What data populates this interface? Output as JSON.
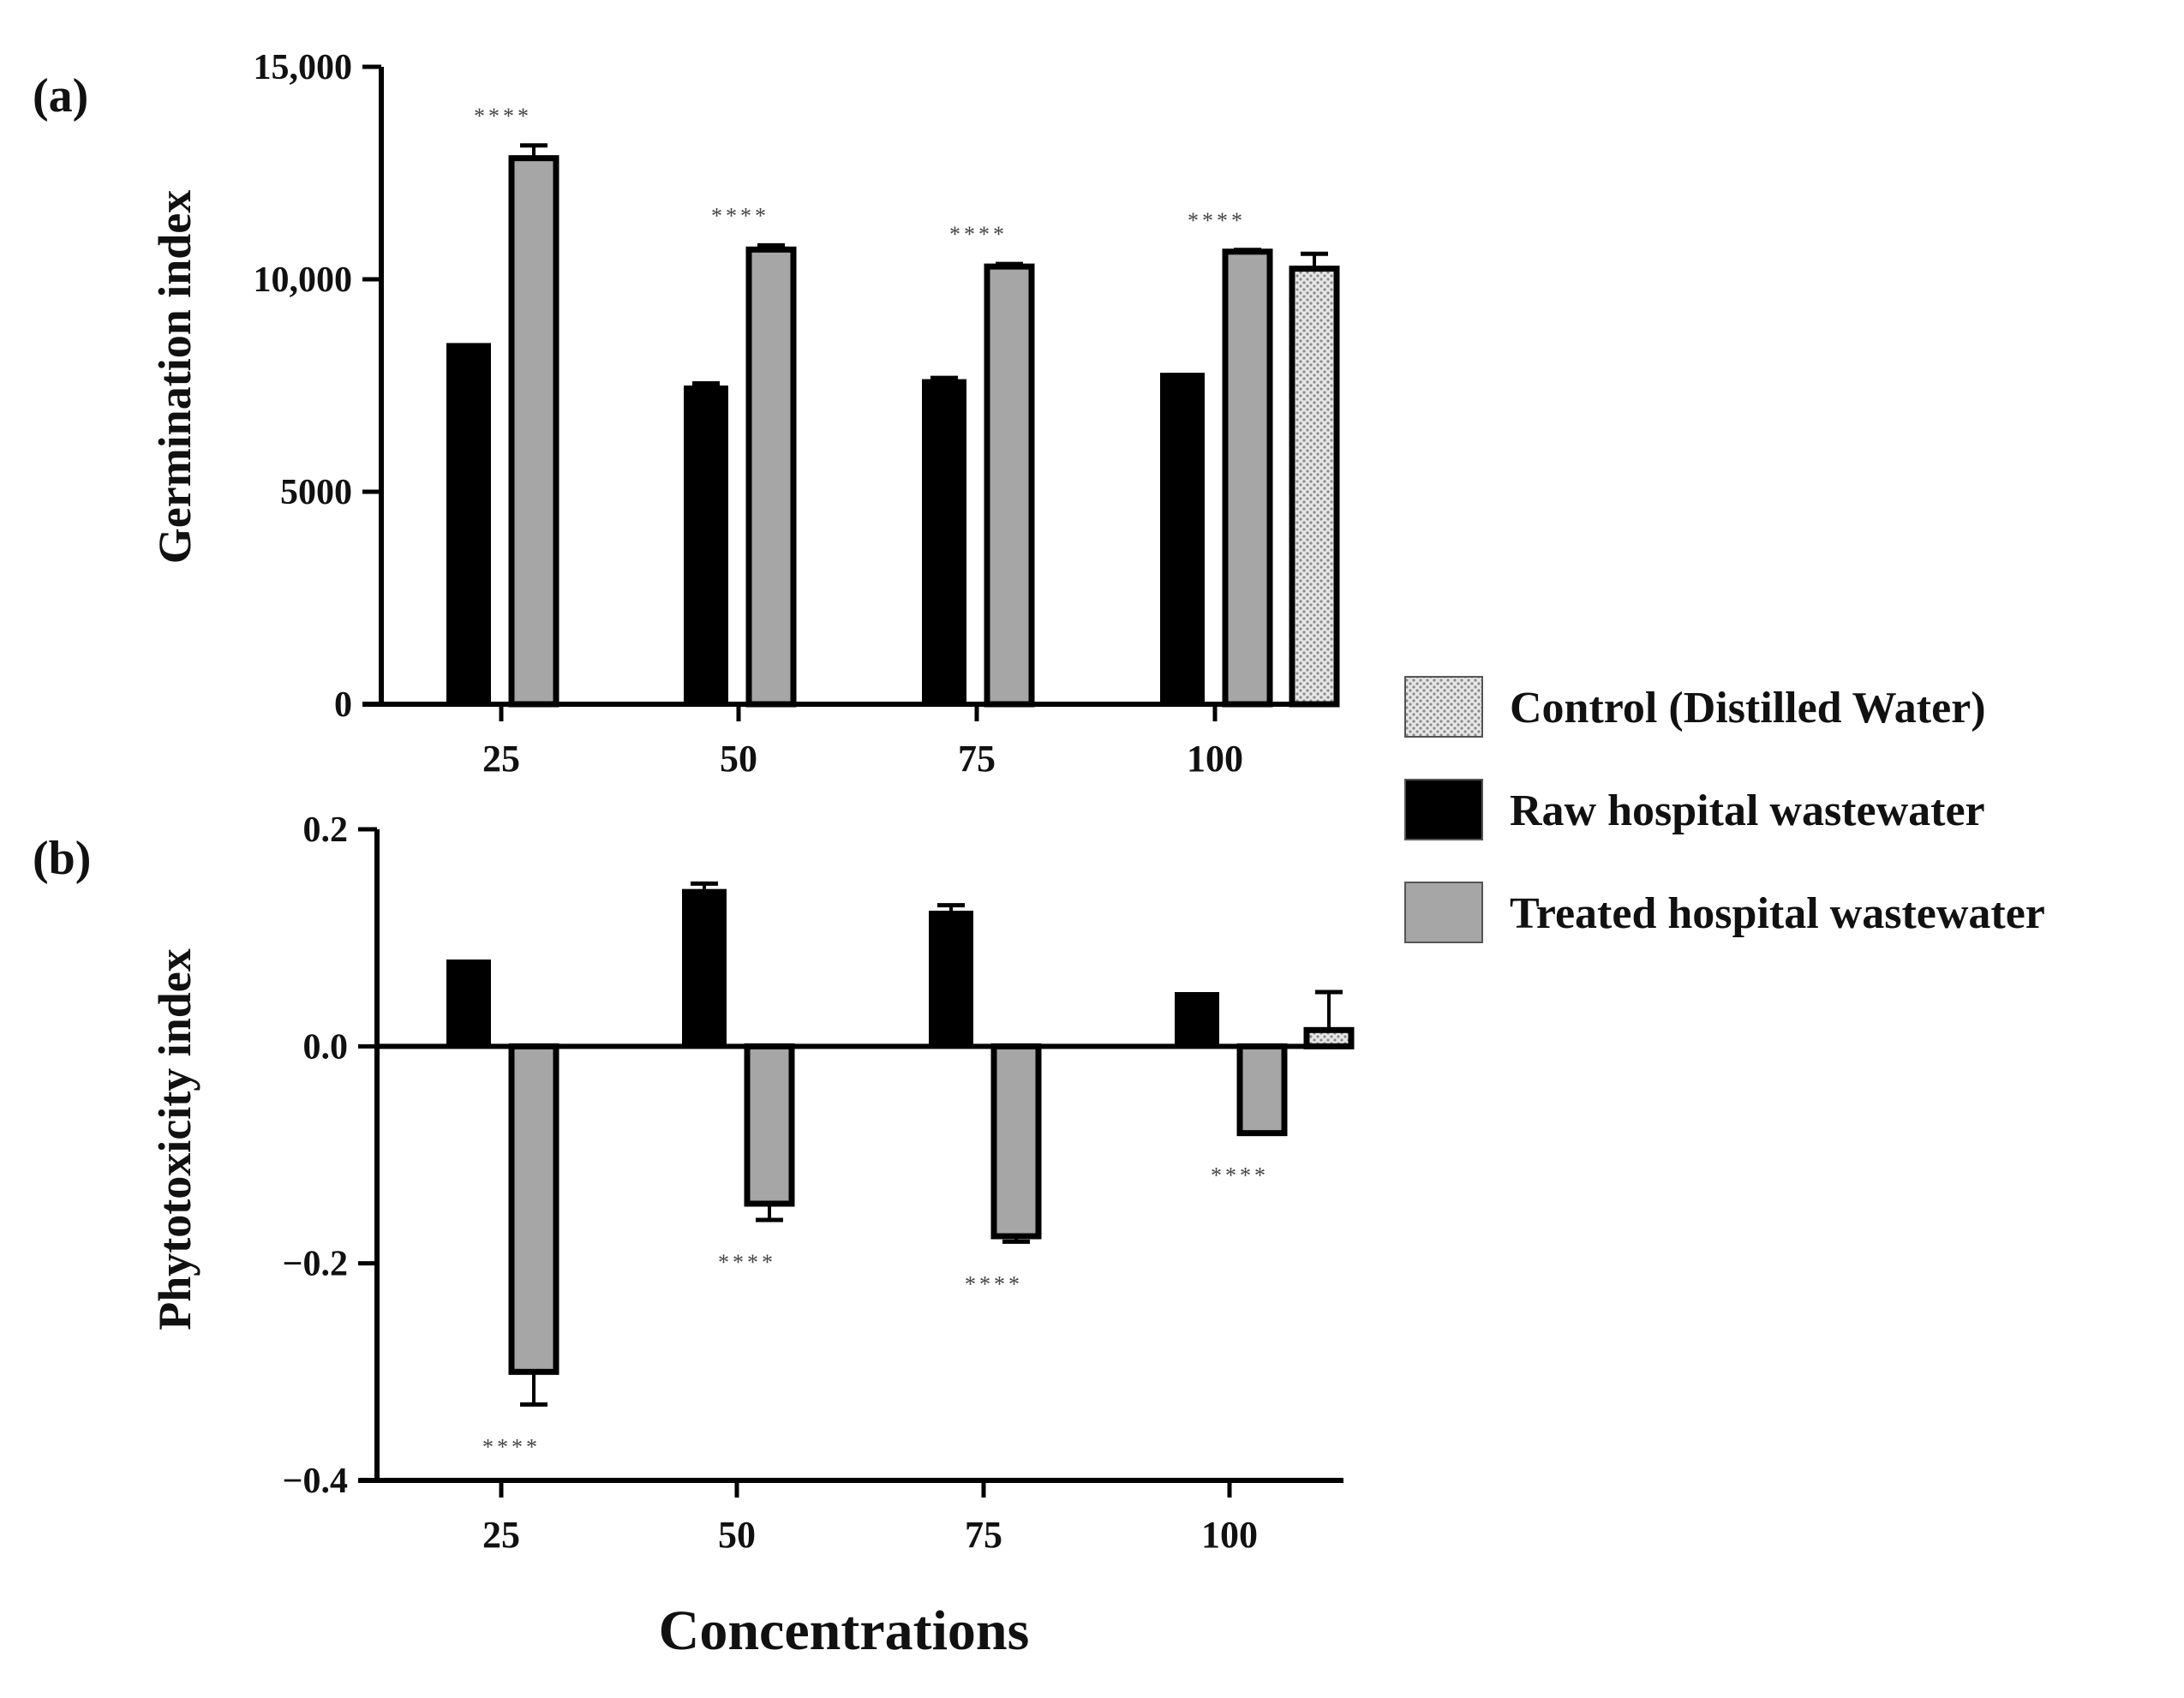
{
  "chart_data": [
    {
      "panel_label": "(a)",
      "type": "bar",
      "categories": [
        "25",
        "50",
        "75",
        "100"
      ],
      "ylabel": "Germination index",
      "ylim": [
        0,
        15000
      ],
      "yticks": [
        0,
        5000,
        10000,
        15000
      ],
      "ytick_labels": [
        "0",
        "5000",
        "10,000",
        "15,000"
      ],
      "series": [
        {
          "name": "Raw hospital wastewater",
          "color": "#000000",
          "values": [
            8500,
            7500,
            7650,
            7800
          ],
          "errors": [
            0,
            50,
            30,
            0
          ]
        },
        {
          "name": "Treated hospital wastewater",
          "color": "#a6a6a6",
          "values": [
            12850,
            10700,
            10300,
            10650
          ],
          "errors": [
            300,
            100,
            60,
            40
          ]
        }
      ],
      "control": {
        "name": "Control (Distilled Water)",
        "category": "100",
        "value": 10250,
        "error": 350,
        "pattern": "dotted-gray"
      },
      "significance": [
        "****",
        "****",
        "****",
        "****"
      ]
    },
    {
      "panel_label": "(b)",
      "type": "bar",
      "categories": [
        "25",
        "50",
        "75",
        "100"
      ],
      "ylabel": "Phytotoxicity index",
      "xlabel": "Concentrations",
      "ylim": [
        -0.4,
        0.2
      ],
      "yticks": [
        -0.4,
        -0.2,
        0.0,
        0.2
      ],
      "ytick_labels": [
        "−0.4",
        "−0.2",
        "0.0",
        "0.2"
      ],
      "series": [
        {
          "name": "Raw hospital wastewater",
          "color": "#000000",
          "values": [
            0.08,
            0.145,
            0.125,
            0.05
          ],
          "errors": [
            0,
            0.005,
            0.005,
            0
          ]
        },
        {
          "name": "Treated hospital wastewater",
          "color": "#a6a6a6",
          "values": [
            -0.3,
            -0.145,
            -0.175,
            -0.08
          ],
          "errors": [
            0.03,
            0.015,
            0.005,
            0
          ]
        },
        {
          "name": "Control (Distilled Water)",
          "color": "#d8d8d8",
          "values": [
            null,
            null,
            null,
            0.015
          ],
          "errors": [
            0,
            0,
            0,
            0.035
          ]
        }
      ],
      "significance": [
        "****",
        "****",
        "****",
        "****"
      ]
    }
  ],
  "legend": {
    "placement": "right",
    "items": [
      {
        "label": "Control (Distilled Water)",
        "pattern": "dotted-gray"
      },
      {
        "label": "Raw hospital wastewater",
        "color": "#000000"
      },
      {
        "label": "Treated hospital wastewater",
        "color": "#a6a6a6"
      }
    ]
  }
}
